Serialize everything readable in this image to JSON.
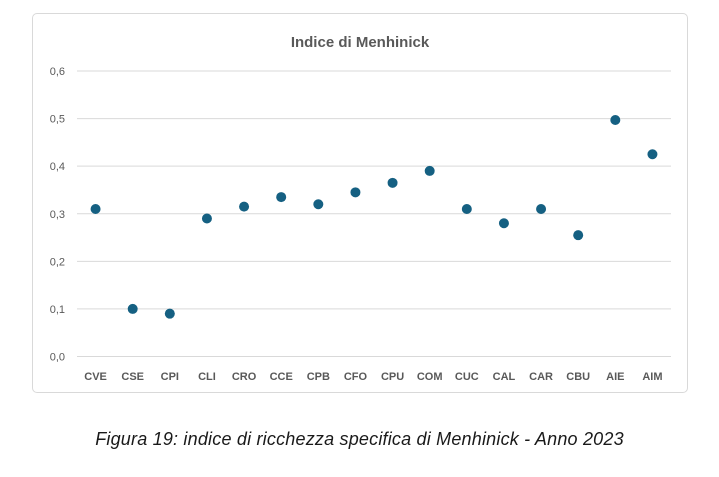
{
  "chart_data": {
    "type": "scatter",
    "title": "Indice di Menhinick",
    "xlabel": "",
    "ylabel": "",
    "categories": [
      "CVE",
      "CSE",
      "CPI",
      "CLI",
      "CRO",
      "CCE",
      "CPB",
      "CFO",
      "CPU",
      "COM",
      "CUC",
      "CAL",
      "CAR",
      "CBU",
      "AIE",
      "AIM"
    ],
    "values": [
      0.31,
      0.1,
      0.09,
      0.29,
      0.315,
      0.335,
      0.32,
      0.345,
      0.365,
      0.39,
      0.31,
      0.28,
      0.31,
      0.255,
      0.497,
      0.425
    ],
    "ylim": [
      0,
      0.6
    ],
    "ytick_values": [
      0,
      0.1,
      0.2,
      0.3,
      0.4,
      0.5,
      0.6
    ],
    "ytick_labels": [
      "0,0",
      "0,1",
      "0,2",
      "0,3",
      "0,4",
      "0,5",
      "0,6"
    ],
    "grid": "horizontal",
    "legend": "none",
    "marker_color": "#156082"
  },
  "caption": "Figura 19: indice di ricchezza specifica di Menhinick - Anno 2023",
  "colors": {
    "marker": "#156082",
    "gridline": "#d9d9d9",
    "axis_text": "#595959",
    "title_text": "#595959",
    "card_border": "#d9d9d9",
    "caption_text": "#1a1a1a",
    "background": "#ffffff"
  }
}
